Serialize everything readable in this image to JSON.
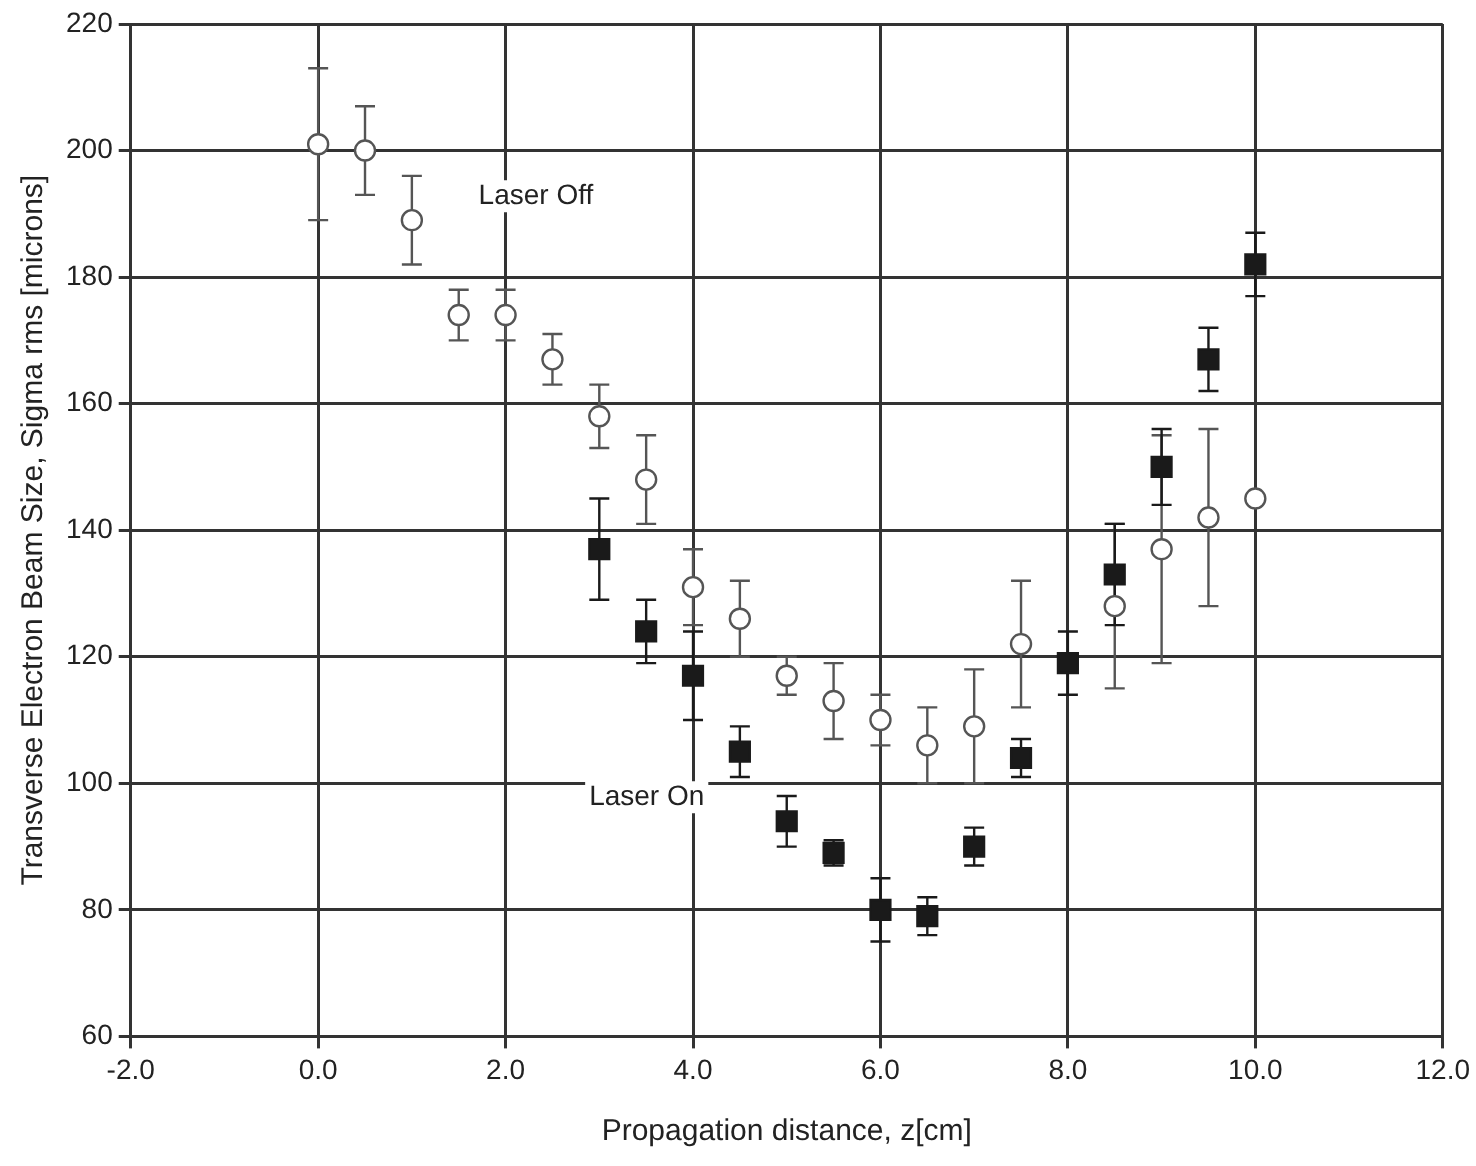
{
  "chart_data": {
    "type": "scatter",
    "xlabel": "Propagation distance, z[cm]",
    "ylabel": "Transverse Electron Beam Size, Sigma rms [microns]",
    "xlim": [
      -2,
      12
    ],
    "xticks": [
      {
        "value": -2,
        "label": "-2.0"
      },
      {
        "value": 0,
        "label": "0.0"
      },
      {
        "value": 2,
        "label": "2.0"
      },
      {
        "value": 4,
        "label": "4.0"
      },
      {
        "value": 6,
        "label": "6.0"
      },
      {
        "value": 8,
        "label": "8.0"
      },
      {
        "value": 10,
        "label": "10.0"
      },
      {
        "value": 12,
        "label": "12.0"
      }
    ],
    "ylim": [
      60,
      220
    ],
    "yticks": [
      60,
      80,
      100,
      120,
      140,
      160,
      180,
      200,
      220
    ],
    "grid": true,
    "legend": false,
    "series": [
      {
        "name": "Laser Off",
        "marker": "circle",
        "color": "#555555",
        "x": [
          0,
          0.5,
          1,
          1.5,
          2,
          2.5,
          3,
          3.5,
          4,
          4.5,
          5,
          5.5,
          6,
          6.5,
          7,
          7.5,
          8.5,
          9,
          9.5,
          10
        ],
        "values": [
          201,
          200,
          189,
          174,
          174,
          167,
          158,
          148,
          131,
          126,
          117,
          113,
          110,
          106,
          109,
          122,
          128,
          137,
          142,
          145
        ],
        "errors": [
          12,
          7,
          7,
          4,
          4,
          4,
          5,
          7,
          6,
          6,
          3,
          6,
          4,
          6,
          9,
          10,
          13,
          18,
          14,
          null
        ]
      },
      {
        "name": "Laser On",
        "marker": "square",
        "color": "#1a1a1a",
        "x": [
          3,
          3.5,
          4,
          4.5,
          5,
          5.5,
          6,
          6.5,
          7,
          7.5,
          8,
          8.5,
          9,
          9.5,
          10
        ],
        "values": [
          137,
          124,
          117,
          105,
          94,
          89,
          80,
          79,
          90,
          104,
          119,
          133,
          150,
          167,
          182
        ],
        "errors": [
          8,
          5,
          7,
          4,
          4,
          2,
          5,
          3,
          3,
          3,
          5,
          8,
          6,
          5,
          5
        ]
      }
    ]
  }
}
